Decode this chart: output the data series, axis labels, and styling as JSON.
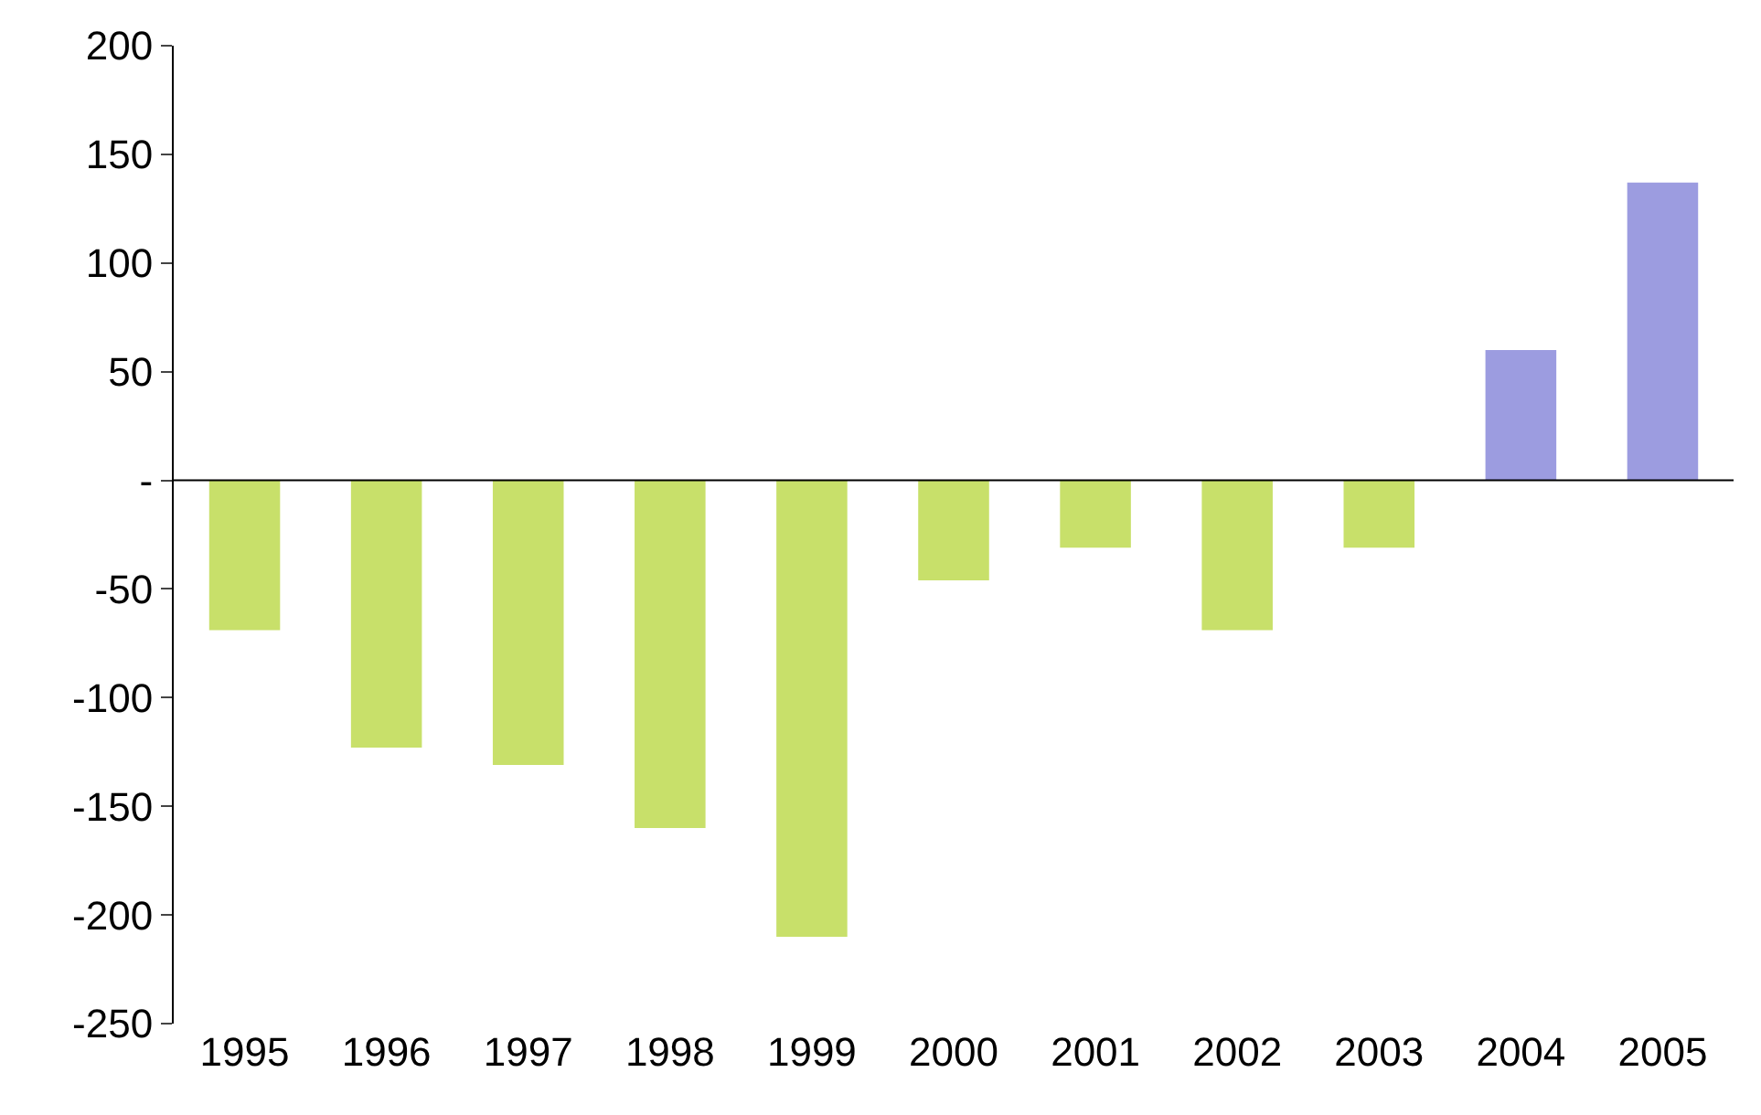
{
  "chart_data": {
    "type": "bar",
    "categories": [
      "1995",
      "1996",
      "1997",
      "1998",
      "1999",
      "2000",
      "2001",
      "2002",
      "2003",
      "2004",
      "2005"
    ],
    "values": [
      -69,
      -123,
      -131,
      -160,
      -210,
      -46,
      -31,
      -69,
      -31,
      60,
      137
    ],
    "colors": [
      "#c8e06a",
      "#c8e06a",
      "#c8e06a",
      "#c8e06a",
      "#c8e06a",
      "#c8e06a",
      "#c8e06a",
      "#c8e06a",
      "#c8e06a",
      "#9c9ce0",
      "#9c9ce0"
    ],
    "ylim": [
      -250,
      200
    ],
    "yticks": [
      -250,
      -200,
      -150,
      -100,
      -50,
      {
        "value": 0,
        "label": "-"
      },
      50,
      100,
      150,
      200
    ]
  }
}
